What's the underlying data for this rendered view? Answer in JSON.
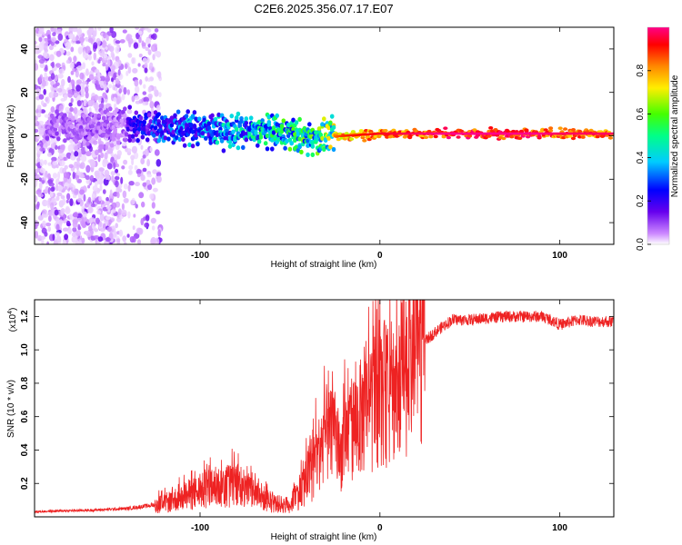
{
  "title": "C2E6.2025.356.07.17.E07",
  "colors": {
    "snr_line": "#ee2222",
    "frame": "#000000",
    "background": "#ffffff"
  },
  "chart_data": [
    {
      "type": "heatmap",
      "xlabel": "Height of straight line (km)",
      "ylabel": "Frequency (Hz)",
      "xlim": [
        -192,
        130
      ],
      "ylim": [
        -50,
        50
      ],
      "xticks": [
        -100,
        0,
        100
      ],
      "xtick_labels": [
        "-100",
        "0",
        "100"
      ],
      "yticks": [
        -40,
        -20,
        0,
        20,
        40
      ],
      "ytick_labels": [
        "-40",
        "-20",
        "0",
        "20",
        "40"
      ],
      "colorbar": {
        "label": "Normalized spectral amplitude",
        "range": [
          0,
          1
        ],
        "ticks": [
          0,
          0.2,
          0.4,
          0.6,
          0.8
        ],
        "tick_labels": [
          "0.0",
          "0.2",
          "0.4",
          "0.6",
          "0.8"
        ],
        "colormap": [
          "#ffffff",
          "#cc88ff",
          "#6600ee",
          "#0000ff",
          "#00ccff",
          "#00ff88",
          "#44ff00",
          "#ffee00",
          "#ff8800",
          "#ff0000",
          "#ff0088"
        ]
      },
      "ridge": {
        "description_points_km": [
          -160,
          -140,
          -120,
          -100,
          -80,
          -60,
          -40,
          -20,
          0,
          20,
          40,
          60,
          80,
          100,
          130
        ],
        "center_hz": [
          5,
          5,
          4,
          3,
          2,
          2,
          -1,
          0,
          1,
          1,
          1,
          1,
          1,
          1,
          1
        ],
        "peak_amplitude": [
          0.3,
          0.3,
          0.4,
          0.45,
          0.5,
          0.6,
          0.65,
          0.85,
          0.9,
          0.95,
          1.0,
          1.0,
          1.0,
          0.95,
          0.95
        ]
      }
    },
    {
      "type": "line",
      "xlabel": "Height of straight line (km)",
      "ylabel": "SNR (10 * v/v)",
      "y_scale_label": "(x10",
      "y_scale_exp": "4",
      "y_scale_close": ")",
      "xlim": [
        -192,
        130
      ],
      "ylim": [
        0,
        13000
      ],
      "xticks": [
        -100,
        0,
        100
      ],
      "xtick_labels": [
        "-100",
        "0",
        "100"
      ],
      "yticks": [
        2000,
        4000,
        6000,
        8000,
        10000,
        12000
      ],
      "ytick_labels": [
        "0.2",
        "0.4",
        "0.6",
        "0.8",
        "1.0",
        "1.2"
      ],
      "series": [
        {
          "name": "SNR",
          "x": [
            -192,
            -180,
            -160,
            -140,
            -120,
            -110,
            -100,
            -90,
            -80,
            -70,
            -60,
            -50,
            -45,
            -40,
            -35,
            -30,
            -25,
            -22,
            -20,
            -15,
            -10,
            -5,
            0,
            5,
            10,
            15,
            20,
            25,
            30,
            40,
            50,
            60,
            70,
            80,
            90,
            95,
            100,
            110,
            120,
            130
          ],
          "y": [
            300,
            350,
            400,
            500,
            800,
            1200,
            1500,
            1800,
            2000,
            1500,
            800,
            700,
            1500,
            2500,
            3500,
            5000,
            4500,
            3500,
            4800,
            5500,
            6000,
            6500,
            7500,
            7200,
            8000,
            9000,
            10000,
            10500,
            11000,
            11800,
            11800,
            11900,
            12000,
            12000,
            12000,
            11800,
            11500,
            11800,
            11700,
            11700
          ]
        }
      ]
    }
  ]
}
